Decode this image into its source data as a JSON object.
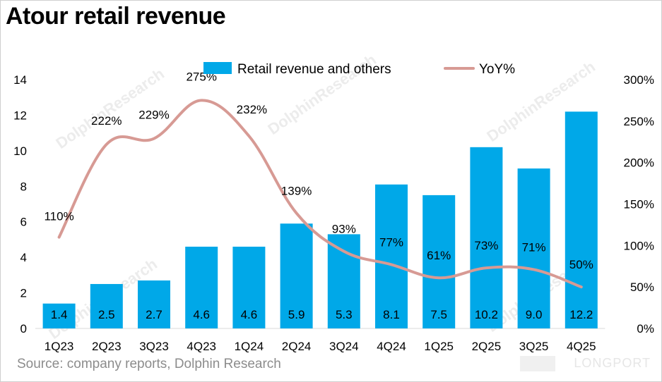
{
  "title": "Atour retail revenue",
  "source": "Source: company reports, Dolphin Research",
  "brand": "LONGPORT",
  "watermark": "DolphinResearch",
  "colors": {
    "bar": "#00a8e8",
    "line": "#d79a94"
  },
  "chart_data": {
    "type": "bar",
    "categories": [
      "1Q23",
      "2Q23",
      "3Q23",
      "4Q23",
      "1Q24",
      "2Q24",
      "3Q24",
      "4Q24",
      "1Q25",
      "2Q25",
      "3Q25",
      "4Q25"
    ],
    "series": [
      {
        "name": "Retail revenue and others",
        "type": "bar",
        "axis": "left",
        "values": [
          1.4,
          2.5,
          2.7,
          4.6,
          4.6,
          5.9,
          5.3,
          8.1,
          7.5,
          10.2,
          9.0,
          12.2
        ],
        "labels": [
          "1.4",
          "2.5",
          "2.7",
          "4.6",
          "4.6",
          "5.9",
          "5.3",
          "8.1",
          "7.5",
          "10.2",
          "9.0",
          "12.2"
        ]
      },
      {
        "name": "YoY%",
        "type": "line",
        "axis": "right",
        "values": [
          110,
          222,
          229,
          275,
          232,
          139,
          93,
          77,
          61,
          73,
          71,
          50
        ],
        "labels": [
          "110%",
          "222%",
          "229%",
          "275%",
          "232%",
          "139%",
          "93%",
          "77%",
          "61%",
          "73%",
          "71%",
          "50%"
        ]
      }
    ],
    "y_left": {
      "lim": [
        0,
        14
      ],
      "ticks": [
        "0",
        "2",
        "4",
        "6",
        "8",
        "10",
        "12",
        "14"
      ]
    },
    "y_right": {
      "lim": [
        0,
        300
      ],
      "ticks": [
        "0%",
        "50%",
        "100%",
        "150%",
        "200%",
        "250%",
        "300%"
      ]
    },
    "legend_position": "top-center",
    "grid": false
  }
}
